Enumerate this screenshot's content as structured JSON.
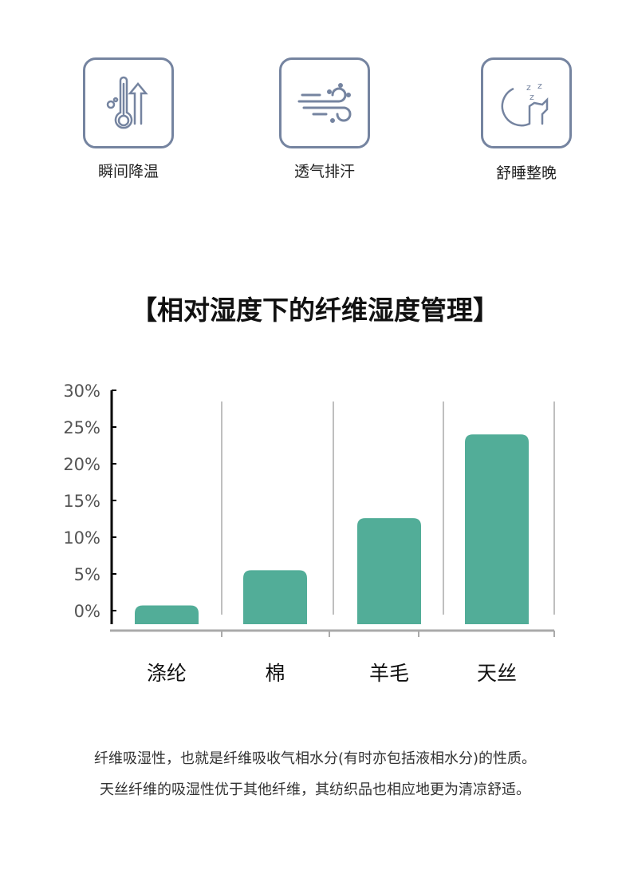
{
  "features": [
    {
      "label": "瞬间降温",
      "icon": "thermometer-arrow-up-icon"
    },
    {
      "label": "透气排汗",
      "icon": "wind-icon"
    },
    {
      "label": "舒睡整晚",
      "icon": "moon-sleep-icon"
    }
  ],
  "title": "【相对湿度下的纤维湿度管理】",
  "chart_data": {
    "type": "bar",
    "title": "【相对湿度下的纤维湿度管理】",
    "categories": [
      "涤纶",
      "棉",
      "羊毛",
      "天丝"
    ],
    "values": [
      0.7,
      5.5,
      12.6,
      24
    ],
    "y_ticks": [
      "0%",
      "5%",
      "10%",
      "15%",
      "20%",
      "25%",
      "30%"
    ],
    "ylim": [
      0,
      30
    ],
    "grid": "vertical separators",
    "bar_color": "#52ad98"
  },
  "description": [
    "纤维吸湿性，也就是纤维吸收气相水分(有时亦包括液相水分)的性质。",
    "天丝纤维的吸湿性优于其他纤维，其纺织品也相应地更为清凉舒适。"
  ],
  "colors": {
    "icon": "#7584a0",
    "bar": "#52ad98"
  }
}
